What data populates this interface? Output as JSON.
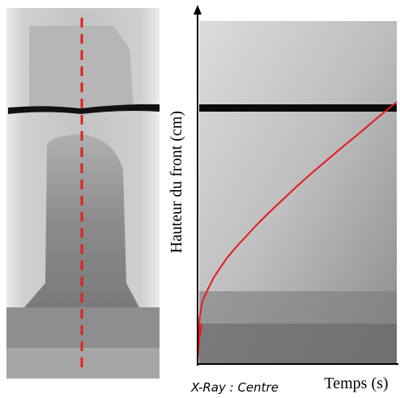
{
  "caption": "X-Ray : Centre",
  "axes": {
    "y_label": "Hauteur du front (cm)",
    "x_label": "Temps (s)"
  }
}
